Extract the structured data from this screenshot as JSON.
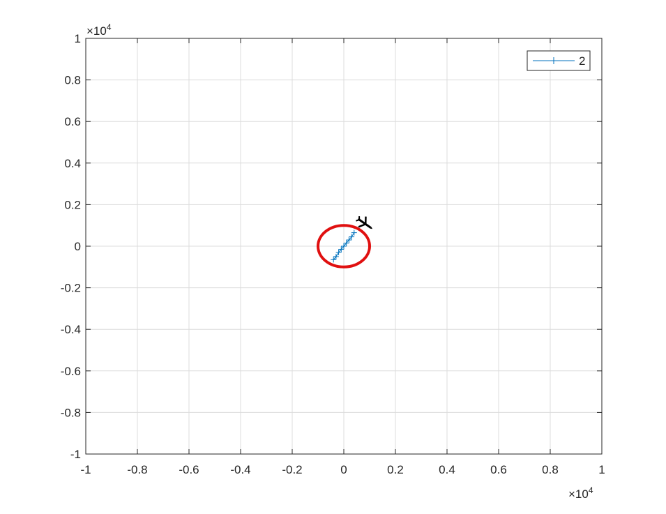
{
  "chart_data": {
    "type": "line",
    "title": "",
    "xlabel": "",
    "ylabel": "",
    "xlim": [
      -10000,
      10000
    ],
    "ylim": [
      -10000,
      10000
    ],
    "x_exponent_label": "×10",
    "x_exponent_power": "4",
    "y_exponent_label": "×10",
    "y_exponent_power": "4",
    "x_ticks": [
      -10000,
      -8000,
      -6000,
      -4000,
      -2000,
      0,
      2000,
      4000,
      6000,
      8000,
      10000
    ],
    "x_tick_labels": [
      "-1",
      "-0.8",
      "-0.6",
      "-0.4",
      "-0.2",
      "0",
      "0.2",
      "0.4",
      "0.6",
      "0.8",
      "1"
    ],
    "y_ticks": [
      -10000,
      -8000,
      -6000,
      -4000,
      -2000,
      0,
      2000,
      4000,
      6000,
      8000,
      10000
    ],
    "y_tick_labels": [
      "-1",
      "-0.8",
      "-0.6",
      "-0.4",
      "-0.2",
      "0",
      "0.2",
      "0.4",
      "0.6",
      "0.8",
      "1"
    ],
    "grid": true,
    "legend_position": "top-right",
    "series": [
      {
        "name": "2",
        "color": "#0072bd",
        "marker": "plus",
        "x": [
          -400,
          -300,
          -200,
          -100,
          0,
          100,
          200,
          300,
          400
        ],
        "y": [
          -650,
          -500,
          -300,
          -150,
          0,
          150,
          300,
          450,
          650
        ]
      }
    ],
    "circle": {
      "cx": 0,
      "cy": 0,
      "rx": 1000,
      "ry": 1000,
      "color": "#e01010"
    },
    "aircraft": {
      "x": 800,
      "y": 1100,
      "color": "#000000"
    }
  }
}
